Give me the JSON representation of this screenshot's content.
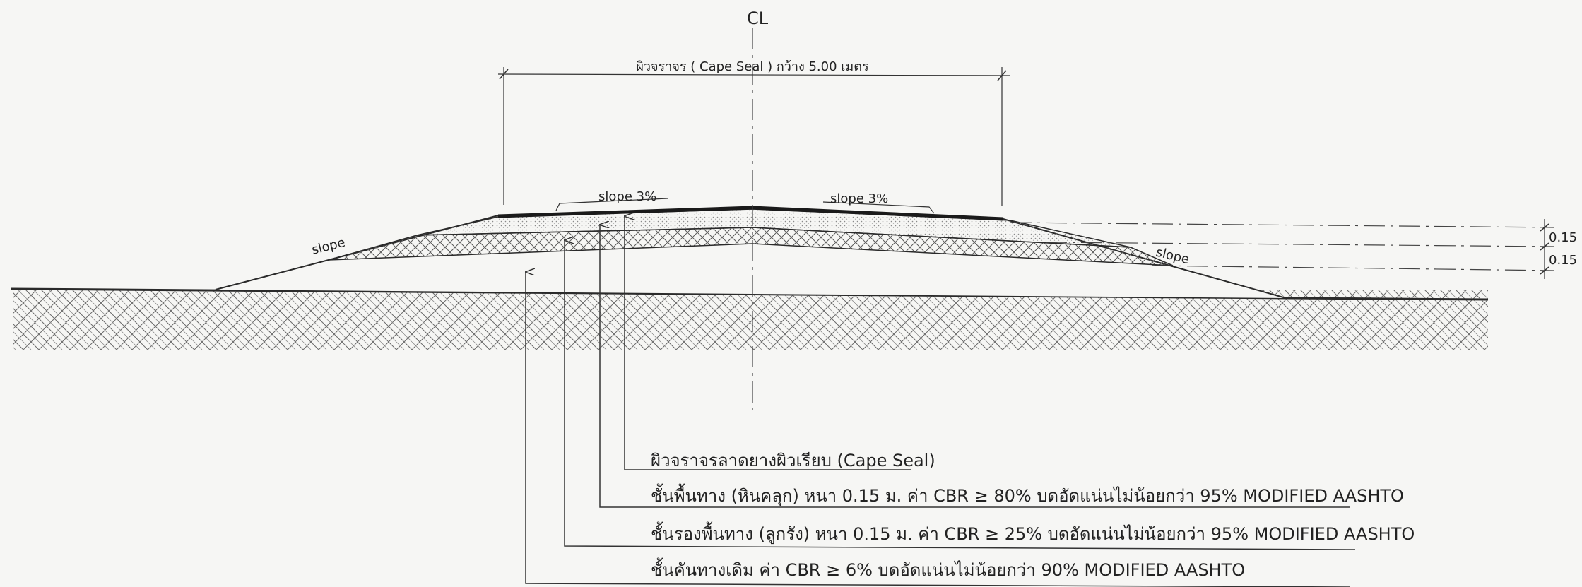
{
  "centerline_label": "CL",
  "width_label": "ผิวจราจร ( Cape Seal ) กว้าง 5.00 เมตร",
  "slope_labels": {
    "top_left": "slope 3%",
    "top_right": "slope 3%",
    "side_left": "slope",
    "side_right": "slope"
  },
  "thickness_labels": [
    "0.15",
    "0.15"
  ],
  "layers": [
    {
      "id": "surface",
      "label": "ผิวจราจรลาดยางผิวเรียบ (Cape Seal)"
    },
    {
      "id": "base",
      "label": "ชั้นพื้นทาง (หินคลุก) หนา 0.15 ม. ค่า CBR ≥ 80% บดอัดแน่นไม่น้อยกว่า 95% MODIFIED AASHTO"
    },
    {
      "id": "subbase",
      "label": "ชั้นรองพื้นทาง (ลูกรัง) หนา 0.15 ม. ค่า CBR ≥ 25% บดอัดแน่นไม่น้อยกว่า 95% MODIFIED AASHTO"
    },
    {
      "id": "embankment",
      "label": "ชั้นคันทางเดิม ค่า CBR ≥ 6% บดอัดแน่นไม่น้อยกว่า 90% MODIFIED AASHTO"
    }
  ],
  "colors": {
    "line": "#2a2a2a",
    "paper": "#f6f6f4"
  }
}
